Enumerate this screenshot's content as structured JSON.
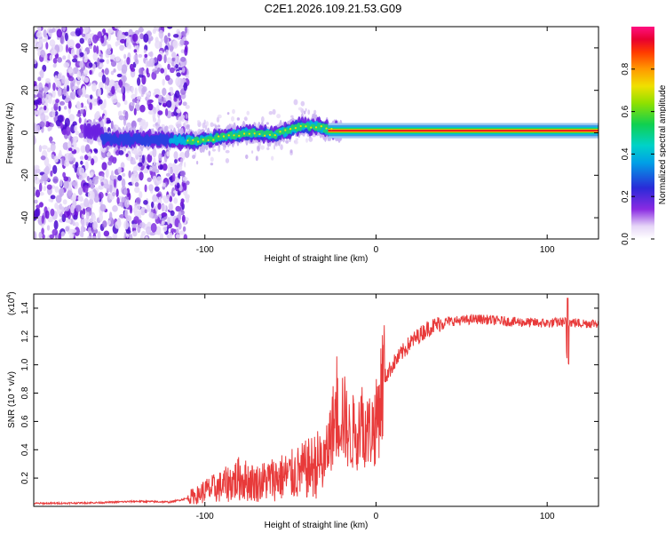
{
  "title": "C2E1.2026.109.21.53.G09",
  "chart_data": [
    {
      "type": "heatmap",
      "name": "spectrogram",
      "xlabel": "Height of straight line (km)",
      "ylabel": "Frequency (Hz)",
      "xlim": [
        -200,
        130
      ],
      "ylim": [
        -50,
        50
      ],
      "xticks": [
        -100,
        0,
        100
      ],
      "yticks": [
        -40,
        -20,
        0,
        20,
        40
      ],
      "colorbar": {
        "label": "Normalized spectral amplitude",
        "range": [
          0,
          1
        ],
        "ticks": [
          0.0,
          0.2,
          0.4,
          0.6,
          0.8
        ],
        "tick_labels": [
          "0.0",
          "0.2",
          "0.4",
          "0.6",
          "0.8"
        ]
      },
      "ridge": {
        "description_points": [
          {
            "x": -160,
            "y": -3
          },
          {
            "x": -130,
            "y": -3
          },
          {
            "x": -105,
            "y": -4
          },
          {
            "x": -90,
            "y": -2
          },
          {
            "x": -75,
            "y": 0
          },
          {
            "x": -60,
            "y": -1
          },
          {
            "x": -45,
            "y": 3
          },
          {
            "x": -35,
            "y": 3
          },
          {
            "x": -25,
            "y": 1
          },
          {
            "x": -15,
            "y": 0
          },
          {
            "x": -10,
            "y": -1
          },
          {
            "x": 0,
            "y": 1
          },
          {
            "x": 130,
            "y": 1
          }
        ],
        "noise_region_x": [
          -200,
          -115
        ]
      }
    },
    {
      "type": "line",
      "name": "snr",
      "xlabel": "Height of straight line (km)",
      "ylabel": "SNR (10 * v/v)",
      "yscale_label": "(x10",
      "yscale_exp": "4",
      "yscale_close": ")",
      "xlim": [
        -200,
        130
      ],
      "ylim": [
        0,
        15000
      ],
      "xticks": [
        -100,
        0,
        100
      ],
      "yticks": [
        2000,
        4000,
        6000,
        8000,
        10000,
        12000,
        14000
      ],
      "ytick_labels": [
        "0.2",
        "0.4",
        "0.6",
        "0.8",
        "1.0",
        "1.2",
        "1.4"
      ],
      "color": "#e83a3a",
      "series": [
        {
          "name": "SNR",
          "x": [
            -200,
            -180,
            -160,
            -140,
            -120,
            -105,
            -100,
            -90,
            -80,
            -70,
            -60,
            -50,
            -40,
            -30,
            -25,
            -20,
            -15,
            -10,
            -5,
            0,
            5,
            10,
            20,
            30,
            40,
            60,
            80,
            100,
            110,
            120,
            130
          ],
          "values": [
            200,
            220,
            260,
            350,
            300,
            700,
            1000,
            1300,
            1800,
            1500,
            1800,
            2000,
            2400,
            3000,
            5500,
            6500,
            4500,
            6000,
            5000,
            5500,
            9000,
            10000,
            11500,
            12500,
            13000,
            13200,
            13000,
            12900,
            13000,
            12900,
            12900
          ]
        }
      ]
    }
  ]
}
